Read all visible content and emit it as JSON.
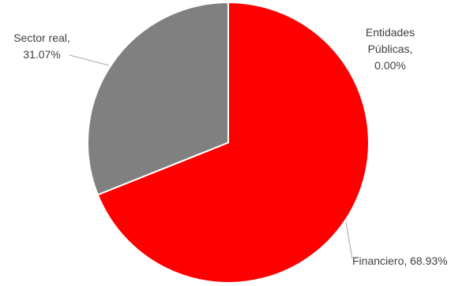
{
  "chart_data": {
    "type": "pie",
    "title": "",
    "slices": [
      {
        "name": "Financiero",
        "value": 68.93,
        "label_lines": [
          "Financiero, 68.93%"
        ],
        "color": "#ff0000"
      },
      {
        "name": "Entidades Públicas",
        "value": 0.0,
        "label_lines": [
          "Entidades",
          "Públicas,",
          "0.00%"
        ],
        "color": "#1f3864"
      },
      {
        "name": "Sector real",
        "value": 31.07,
        "label_lines": [
          "Sector real,",
          "31.07%"
        ],
        "color": "#808080"
      }
    ],
    "start_angle_deg": 0,
    "direction": "clockwise",
    "slice_border_color": "#ffffff",
    "leader_line_color": "#a6a6a6",
    "label_color": "#404040",
    "legend": "none"
  }
}
